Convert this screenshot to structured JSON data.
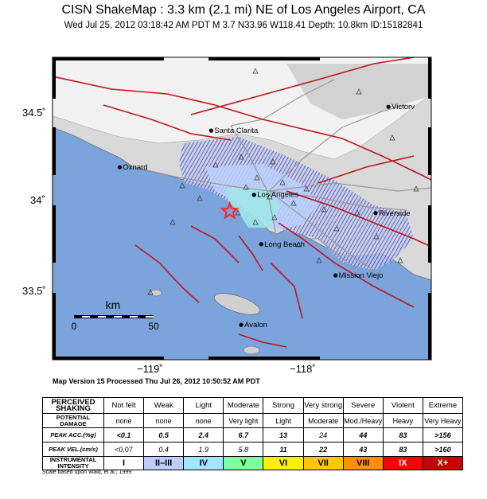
{
  "header": {
    "title": "CISN ShakeMap : 3.3 km (2.1 mi) NE of Los Angeles Airport, CA",
    "subtitle": "Wed Jul 25, 2012 03:18:42 AM PDT   M 3.7   N33.96 W118.41   Depth: 10.8km   ID:15182841"
  },
  "map": {
    "lat_ticks": [
      "34.5˚",
      "34˚",
      "33.5˚"
    ],
    "lon_ticks": [
      "−119˚",
      "−118˚"
    ],
    "colors": {
      "ocean": "#7ba3dc",
      "land": "#d8d8d8",
      "faults": "#c0141e",
      "roads": "#9a9a9a",
      "epicenter": "#ff2020"
    },
    "cities": [
      {
        "name": "Victorv",
        "x": -117.3,
        "y": 34.53
      },
      {
        "name": "Santa Clarita",
        "x": -118.54,
        "y": 34.4
      },
      {
        "name": "Oxnard",
        "x": -119.18,
        "y": 34.2
      },
      {
        "name": "Los Angeles",
        "x": -118.24,
        "y": 34.05
      },
      {
        "name": "Riverside",
        "x": -117.39,
        "y": 33.95
      },
      {
        "name": "Long Beach",
        "x": -118.19,
        "y": 33.78
      },
      {
        "name": "Mission Viejo",
        "x": -117.67,
        "y": 33.61
      },
      {
        "name": "Avalon",
        "x": -118.33,
        "y": 33.34
      }
    ],
    "epicenter": {
      "lat": 33.96,
      "lon": -118.41
    },
    "scale_bar": {
      "unit": "km",
      "labels": [
        "0",
        "50"
      ]
    }
  },
  "version_line": "Map Version 15 Processed Thu Jul 26, 2012 10:50:52 AM PDT",
  "legend": {
    "headers": {
      "shaking": "PERCEIVED SHAKING",
      "damage": "POTENTIAL DAMAGE",
      "acc": "PEAK ACC.(%g)",
      "vel": "PEAK VEL.(cm/s)",
      "mmi": "INSTRUMENTAL INTENSITY"
    },
    "columns": [
      {
        "shaking": "Not felt",
        "damage": "none",
        "acc": "<0.1",
        "vel": "<0.07",
        "mmi": "I",
        "color": "#ffffff"
      },
      {
        "shaking": "Weak",
        "damage": "none",
        "acc": "0.5",
        "vel": "0.4",
        "mmi": "II–III",
        "color": "#bfccff"
      },
      {
        "shaking": "Light",
        "damage": "none",
        "acc": "2.4",
        "vel": "1.9",
        "mmi": "IV",
        "color": "#a0e6ff"
      },
      {
        "shaking": "Moderate",
        "damage": "Very light",
        "acc": "6.7",
        "vel": "5.8",
        "mmi": "V",
        "color": "#80ffa0"
      },
      {
        "shaking": "Strong",
        "damage": "Light",
        "acc": "13",
        "vel": "11",
        "mmi": "VI",
        "color": "#fff000"
      },
      {
        "shaking": "Very strong",
        "damage": "Moderate",
        "acc": "24",
        "vel": "22",
        "mmi": "VII",
        "color": "#ffc800"
      },
      {
        "shaking": "Severe",
        "damage": "Mod./Heavy",
        "acc": "44",
        "vel": "43",
        "mmi": "VIII",
        "color": "#ff9100"
      },
      {
        "shaking": "Violent",
        "damage": "Heavy",
        "acc": "83",
        "vel": "83",
        "mmi": "IX",
        "color": "#ff0000"
      },
      {
        "shaking": "Extreme",
        "damage": "Very Heavy",
        "acc": ">156",
        "vel": ">160",
        "mmi": "X+",
        "color": "#c80000"
      }
    ]
  },
  "footnote": "Scale based upon Wald, et al.; 1999"
}
